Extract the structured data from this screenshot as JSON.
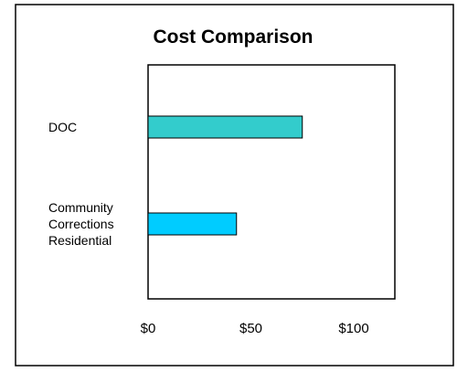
{
  "chart_data": {
    "type": "bar",
    "orientation": "horizontal",
    "title": "Cost Comparison",
    "categories": [
      [
        "DOC"
      ],
      [
        "Community",
        "Corrections",
        "Residential"
      ]
    ],
    "values": [
      75,
      43
    ],
    "bar_colors": [
      "#33CCCC",
      "#00CCFF"
    ],
    "xlim": [
      0,
      120
    ],
    "xticks": [
      {
        "value": 0,
        "label": "$0"
      },
      {
        "value": 50,
        "label": "$50"
      },
      {
        "value": 100,
        "label": "$100"
      }
    ],
    "grid": false,
    "legend": "none"
  }
}
